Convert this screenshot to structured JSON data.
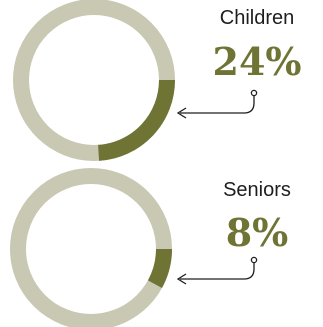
{
  "colors": {
    "ring_bg": "#c9c8b3",
    "ring_fg": "#6f7434",
    "value_text": "#6f7434",
    "label_text": "#1e1e1e",
    "arrow": "#1e1e1e"
  },
  "chart_data": [
    {
      "type": "pie",
      "style": "donut",
      "label": "Children",
      "value_text": "24%",
      "value": 24
    },
    {
      "type": "pie",
      "style": "donut",
      "label": "Seniors",
      "value_text": "8%",
      "value": 8
    }
  ]
}
